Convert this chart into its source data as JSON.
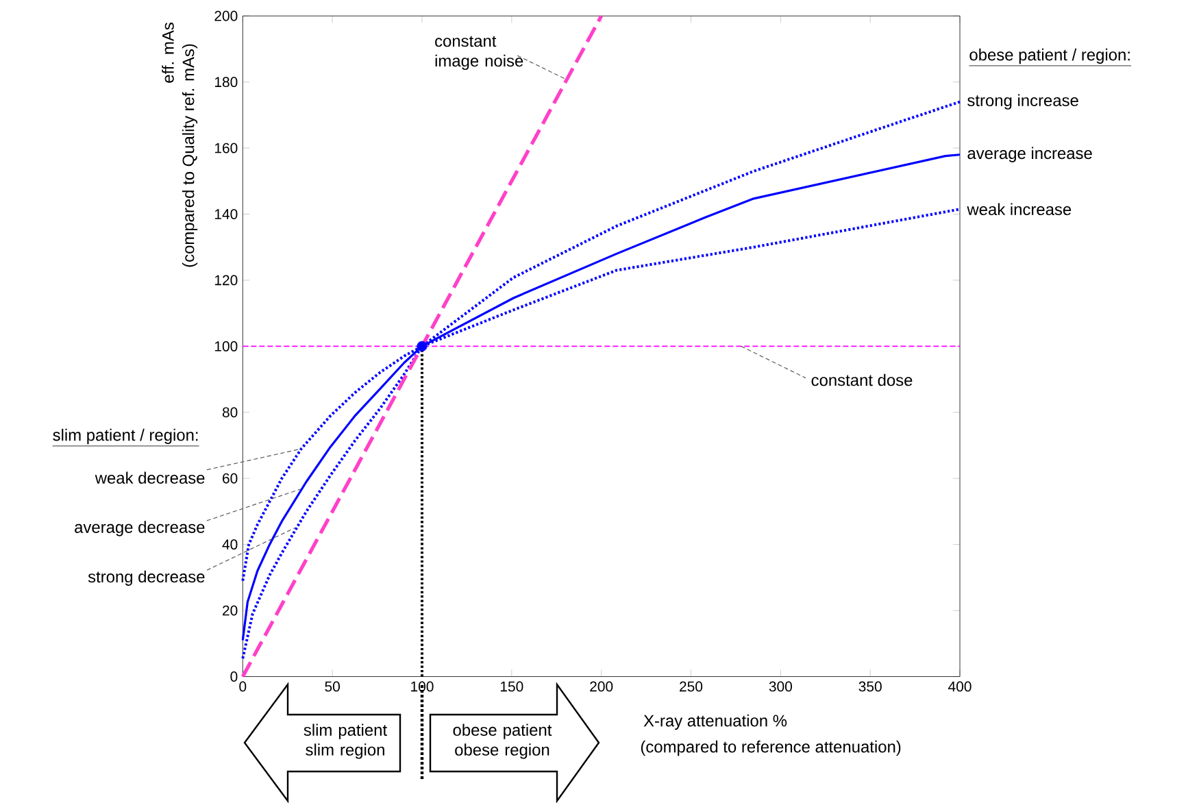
{
  "chart_data": {
    "type": "line",
    "xlabel": "X-ray attenuation %",
    "ylabel": "eff. mAs",
    "xlim": [
      0,
      400
    ],
    "ylim": [
      0,
      200
    ],
    "xticks": [
      0,
      50,
      100,
      150,
      200,
      250,
      300,
      350,
      400
    ],
    "yticks": [
      0,
      20,
      40,
      60,
      80,
      100,
      120,
      140,
      160,
      180,
      200
    ],
    "series": [
      {
        "color": "#0000ff",
        "line_style": "dotted",
        "x": [
          0,
          3.4,
          8.2,
          15,
          21.8,
          32.7,
          49,
          62.7,
          76.4,
          90,
          100,
          151,
          208.5,
          285,
          400
        ],
        "values": [
          29,
          40,
          46,
          53,
          60,
          69,
          79,
          86,
          92,
          97,
          100,
          111,
          123,
          130,
          141.5
        ]
      },
      {
        "color": "#0000ff",
        "line_style": "solid",
        "x": [
          0,
          2.7,
          8.2,
          15,
          21.8,
          35.5,
          49,
          62.7,
          76.4,
          90,
          100,
          151,
          208.5,
          258,
          285,
          392,
          400
        ],
        "values": [
          11,
          22.6,
          32,
          40,
          47,
          59,
          69.6,
          79,
          87,
          95,
          100,
          114.6,
          128,
          139,
          144.7,
          157.6,
          158
        ]
      },
      {
        "color": "#0000ff",
        "line_style": "dotted",
        "x": [
          0,
          5.5,
          15,
          21.8,
          35.5,
          49,
          62.7,
          76.4,
          90,
          100,
          151,
          208.5,
          285,
          361.4,
          400
        ],
        "values": [
          5.5,
          19,
          30.7,
          37.4,
          50,
          61,
          71.5,
          81,
          91.5,
          100,
          120.8,
          136.4,
          153,
          167,
          174
        ]
      },
      {
        "name": "constant image noise",
        "color": "#ff40c8",
        "line_style": "dashed",
        "x": [
          0,
          200
        ],
        "values": [
          0,
          200
        ]
      },
      {
        "color": "#000000",
        "line_style": "dotted",
        "x": [
          100,
          100
        ],
        "values": [
          0,
          100
        ]
      },
      {
        "type": "scatter",
        "marker": "circle",
        "color": "#0000ff",
        "x": [
          100
        ],
        "values": [
          100
        ]
      }
    ],
    "ref_lines": [
      {
        "axis": "y",
        "value": 100,
        "label": "constant dose",
        "color": "#ff00ff",
        "line_style": "dashed"
      }
    ],
    "annotations": [
      "(compared to Quality ref. mAs)",
      "(compared to reference attenuation)",
      "obese patient / region:",
      "slim patient / region:",
      "slim patient slim region",
      "obese patient obese region",
      {
        "text": "strong increase",
        "x": 400,
        "y": 174
      },
      {
        "text": "average increase",
        "x": 400,
        "y": 158
      },
      {
        "text": "weak increase",
        "x": 400,
        "y": 141.5
      },
      {
        "text": "weak decrease",
        "x": 33,
        "y": 69
      },
      {
        "text": "average decrease",
        "x": 32,
        "y": 56.7
      },
      {
        "text": "strong decrease",
        "x": 29,
        "y": 45
      }
    ]
  }
}
